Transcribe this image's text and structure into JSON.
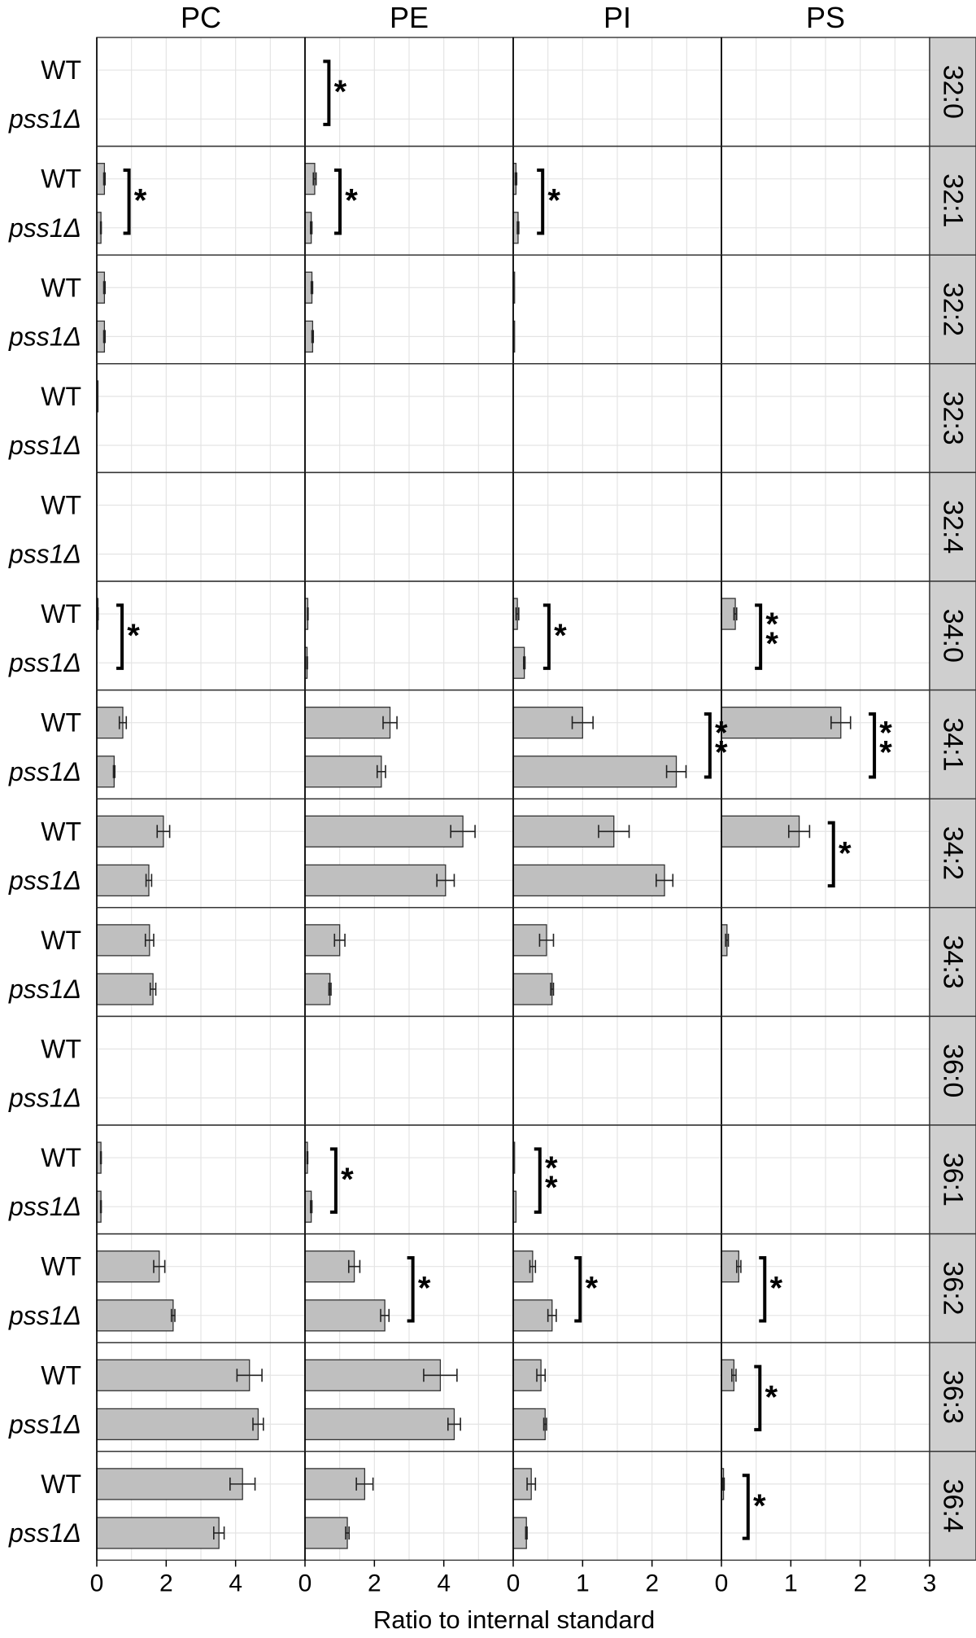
{
  "chart_data": {
    "type": "bar",
    "orientation": "horizontal",
    "facet_columns": [
      "PC",
      "PE",
      "PI",
      "PS"
    ],
    "facet_rows": [
      "32:0",
      "32:1",
      "32:2",
      "32:3",
      "32:4",
      "34:0",
      "34:1",
      "34:2",
      "34:3",
      "36:0",
      "36:1",
      "36:2",
      "36:3",
      "36:4"
    ],
    "strains": [
      "WT",
      "pss1Δ"
    ],
    "xlabel": "Ratio to internal standard",
    "x_ticks": [
      [
        "0",
        "2",
        "4"
      ],
      [
        "0",
        "2",
        "4"
      ],
      [
        "0",
        "1",
        "2"
      ],
      [
        "0",
        "1",
        "2",
        "3"
      ]
    ],
    "x_tick_values": [
      [
        0,
        2,
        4
      ],
      [
        0,
        2,
        4
      ],
      [
        0,
        1,
        2
      ],
      [
        0,
        1,
        2,
        3
      ]
    ],
    "xlim": [
      [
        0,
        6
      ],
      [
        0,
        6
      ],
      [
        0,
        3
      ],
      [
        0,
        3
      ]
    ],
    "grid": true,
    "series": [
      {
        "name": "WT",
        "values": [
          [
            0.0,
            0.0,
            0.0,
            0.0
          ],
          [
            0.22,
            0.28,
            0.04,
            0.0
          ],
          [
            0.22,
            0.2,
            0.02,
            0.0
          ],
          [
            0.02,
            0.0,
            0.0,
            0.0
          ],
          [
            0.0,
            0.0,
            0.0,
            0.0
          ],
          [
            0.03,
            0.08,
            0.06,
            0.2
          ],
          [
            0.75,
            2.45,
            1.0,
            1.72
          ],
          [
            1.92,
            4.55,
            1.45,
            1.12
          ],
          [
            1.52,
            1.0,
            0.48,
            0.08
          ],
          [
            0.0,
            0.0,
            0.0,
            0.0
          ],
          [
            0.12,
            0.07,
            0.02,
            0.0
          ],
          [
            1.8,
            1.42,
            0.28,
            0.25
          ],
          [
            4.4,
            3.9,
            0.4,
            0.18
          ],
          [
            4.2,
            1.72,
            0.26,
            0.03
          ]
        ],
        "errors": [
          [
            0,
            0,
            0,
            0
          ],
          [
            0.02,
            0.04,
            0.01,
            0
          ],
          [
            0.02,
            0.02,
            0,
            0
          ],
          [
            0,
            0,
            0,
            0
          ],
          [
            0,
            0,
            0,
            0
          ],
          [
            0.01,
            0.01,
            0.02,
            0.02
          ],
          [
            0.1,
            0.2,
            0.15,
            0.14
          ],
          [
            0.18,
            0.35,
            0.22,
            0.15
          ],
          [
            0.12,
            0.15,
            0.1,
            0.02
          ],
          [
            0,
            0,
            0,
            0
          ],
          [
            0.01,
            0.01,
            0,
            0
          ],
          [
            0.16,
            0.16,
            0.04,
            0.03
          ],
          [
            0.36,
            0.48,
            0.06,
            0.03
          ],
          [
            0.36,
            0.24,
            0.06,
            0.01
          ]
        ]
      },
      {
        "name": "pss1Δ",
        "values": [
          [
            0.0,
            0.0,
            0.0,
            0.0
          ],
          [
            0.12,
            0.18,
            0.07,
            0.0
          ],
          [
            0.22,
            0.22,
            0.02,
            0.0
          ],
          [
            0.0,
            0.0,
            0.0,
            0.0
          ],
          [
            0.0,
            0.0,
            0.0,
            0.0
          ],
          [
            0.0,
            0.06,
            0.16,
            0.0
          ],
          [
            0.5,
            2.2,
            2.35,
            0.0
          ],
          [
            1.5,
            4.05,
            2.18,
            0.0
          ],
          [
            1.62,
            0.72,
            0.56,
            0.0
          ],
          [
            0.0,
            0.0,
            0.0,
            0.0
          ],
          [
            0.12,
            0.18,
            0.04,
            0.0
          ],
          [
            2.2,
            2.3,
            0.56,
            0.0
          ],
          [
            4.65,
            4.3,
            0.46,
            0.0
          ],
          [
            3.52,
            1.22,
            0.19,
            0.0
          ]
        ],
        "errors": [
          [
            0,
            0,
            0,
            0
          ],
          [
            0.01,
            0.02,
            0.01,
            0
          ],
          [
            0.02,
            0.02,
            0,
            0
          ],
          [
            0,
            0,
            0,
            0
          ],
          [
            0,
            0,
            0,
            0
          ],
          [
            0,
            0.01,
            0.01,
            0
          ],
          [
            0.02,
            0.12,
            0.14,
            0
          ],
          [
            0.08,
            0.25,
            0.12,
            0
          ],
          [
            0.08,
            0.03,
            0.02,
            0
          ],
          [
            0,
            0,
            0,
            0
          ],
          [
            0.01,
            0.02,
            0,
            0
          ],
          [
            0.05,
            0.12,
            0.06,
            0
          ],
          [
            0.15,
            0.18,
            0.02,
            0
          ],
          [
            0.15,
            0.05,
            0.01,
            0
          ]
        ]
      }
    ],
    "significance": [
      {
        "row": "32:0",
        "column": "PE",
        "label": "*"
      },
      {
        "row": "32:1",
        "column": "PC",
        "label": "*"
      },
      {
        "row": "32:1",
        "column": "PE",
        "label": "*"
      },
      {
        "row": "32:1",
        "column": "PI",
        "label": "*"
      },
      {
        "row": "34:0",
        "column": "PC",
        "label": "*"
      },
      {
        "row": "34:0",
        "column": "PI",
        "label": "*"
      },
      {
        "row": "34:0",
        "column": "PS",
        "label": "**"
      },
      {
        "row": "34:1",
        "column": "PI",
        "label": "**"
      },
      {
        "row": "34:1",
        "column": "PS",
        "label": "**"
      },
      {
        "row": "34:2",
        "column": "PS",
        "label": "*"
      },
      {
        "row": "36:1",
        "column": "PE",
        "label": "*"
      },
      {
        "row": "36:1",
        "column": "PI",
        "label": "**"
      },
      {
        "row": "36:2",
        "column": "PE",
        "label": "*"
      },
      {
        "row": "36:2",
        "column": "PI",
        "label": "*"
      },
      {
        "row": "36:2",
        "column": "PS",
        "label": "*"
      },
      {
        "row": "36:3",
        "column": "PS",
        "label": "*"
      },
      {
        "row": "36:4",
        "column": "PS",
        "label": "*"
      }
    ],
    "colors": {
      "bar_fill": "#bfbfbf",
      "bar_stroke": "#333333",
      "strip_fill": "#cfcfcf",
      "grid": "#e4e4e4",
      "panel_border": "#333333"
    }
  }
}
